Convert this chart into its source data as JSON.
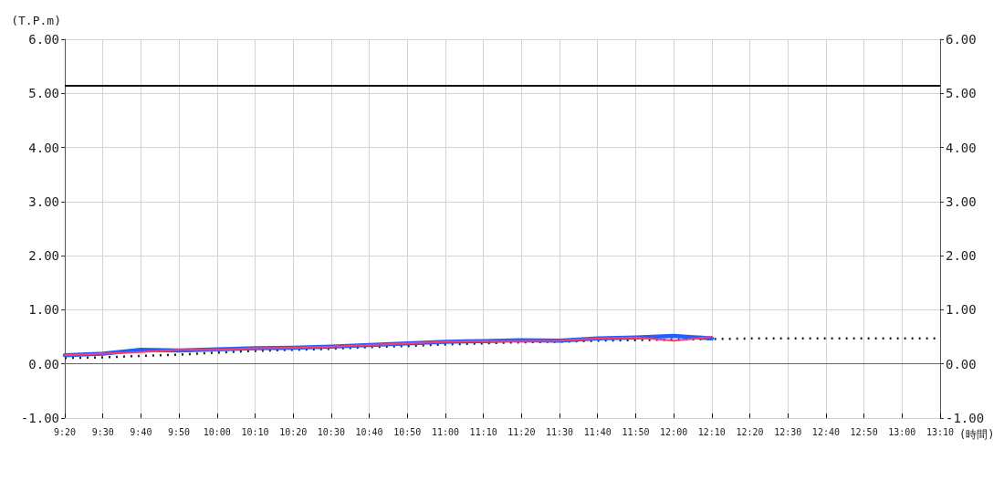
{
  "chart_data": {
    "type": "line",
    "ylabel": "(T.P.m)",
    "xlabel": "(時間)",
    "categories": [
      "9:20",
      "9:30",
      "9:40",
      "9:50",
      "10:00",
      "10:10",
      "10:20",
      "10:30",
      "10:40",
      "10:50",
      "11:00",
      "11:10",
      "11:20",
      "11:30",
      "11:40",
      "11:50",
      "12:00",
      "12:10",
      "12:20",
      "12:30",
      "12:40",
      "12:50",
      "13:00",
      "13:10"
    ],
    "series": [
      {
        "color": "#222222",
        "line_style": "dotted",
        "values": [
          0.11,
          0.12,
          0.15,
          0.17,
          0.21,
          0.24,
          0.26,
          0.28,
          0.31,
          0.33,
          0.36,
          0.38,
          0.4,
          0.41,
          0.43,
          0.44,
          0.45,
          0.46,
          0.47,
          0.47,
          0.47,
          0.47,
          0.47,
          0.47
        ]
      },
      {
        "color": "#1f5fff",
        "values": [
          0.16,
          0.19,
          0.26,
          0.25,
          0.27,
          0.29,
          0.3,
          0.32,
          0.35,
          0.38,
          0.41,
          0.42,
          0.44,
          0.43,
          0.47,
          0.49,
          0.52,
          0.47,
          null,
          null,
          null,
          null,
          null,
          null
        ]
      },
      {
        "color": "#ff3d6a",
        "values": [
          0.16,
          0.19,
          0.22,
          0.26,
          0.26,
          0.29,
          0.3,
          0.32,
          0.35,
          0.38,
          0.41,
          0.42,
          0.42,
          0.43,
          0.47,
          0.49,
          0.43,
          0.5,
          null,
          null,
          null,
          null,
          null,
          null
        ]
      }
    ],
    "ylim": [
      -1,
      6
    ],
    "yticks": [
      {
        "value": -1,
        "label": "-1.00"
      },
      {
        "value": 0,
        "label": "0.00"
      },
      {
        "value": 1,
        "label": "1.00"
      },
      {
        "value": 2,
        "label": "2.00"
      },
      {
        "value": 3,
        "label": "3.00"
      },
      {
        "value": 4,
        "label": "4.00"
      },
      {
        "value": 5,
        "label": "5.00"
      },
      {
        "value": 6,
        "label": "6.00"
      }
    ],
    "y2lim": [
      -1,
      6
    ],
    "y2ticks": [
      {
        "value": -1,
        "label": "-1.00"
      },
      {
        "value": 0,
        "label": "0.00"
      },
      {
        "value": 1,
        "label": "1.00"
      },
      {
        "value": 2,
        "label": "2.00"
      },
      {
        "value": 3,
        "label": "3.00"
      },
      {
        "value": 4,
        "label": "4.00"
      },
      {
        "value": 5,
        "label": "5.00"
      },
      {
        "value": 6,
        "label": "6.00"
      }
    ],
    "ref_lines": [
      {
        "axis": "y",
        "value": 5.15,
        "color": "#111111"
      },
      {
        "axis": "y",
        "value": 0,
        "color": "#666666"
      }
    ],
    "grid": true,
    "marker": "none",
    "line_style": "solid"
  }
}
